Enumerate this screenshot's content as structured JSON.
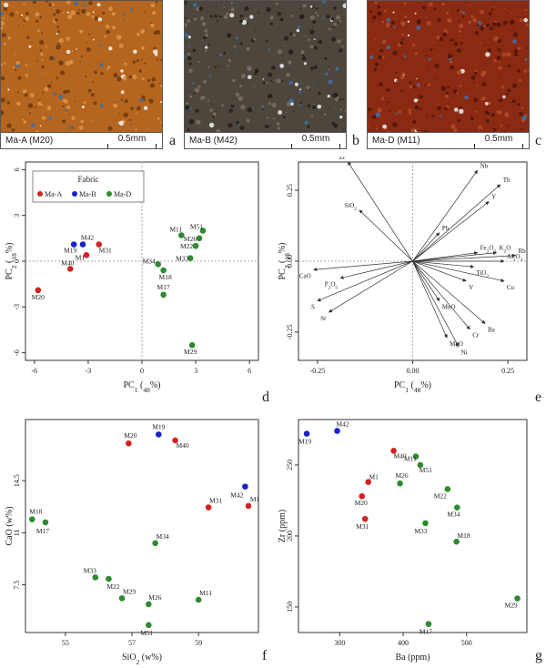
{
  "micrographs": [
    {
      "caption": "Ma-A (M20)",
      "scale": "0.5mm",
      "letter": "a",
      "base": "#b5651d",
      "dark": "#6b3a12",
      "light": "#d9924a"
    },
    {
      "caption": "Ma-B (M42)",
      "scale": "0.5mm",
      "letter": "b",
      "base": "#4d463c",
      "dark": "#221f1a",
      "light": "#7a7060"
    },
    {
      "caption": "Ma-D (M11)",
      "scale": "0.5mm",
      "letter": "c",
      "base": "#8a2a12",
      "dark": "#4e150a",
      "light": "#b24a28"
    }
  ],
  "panel_letters": {
    "d": "d",
    "e": "e",
    "f": "f",
    "g": "g"
  },
  "colors": {
    "Ma-A": "#d32222",
    "Ma-B": "#1a22c8",
    "Ma-D": "#2e8b2e"
  },
  "chart_data": [
    {
      "id": "pca-scores",
      "type": "scatter",
      "xlabel": "PC1 (48%)",
      "ylabel": "PC2 (18%)",
      "xlim": [
        -6.5,
        6.5
      ],
      "ylim": [
        -6.5,
        6.5
      ],
      "xticks": [
        -6,
        -3,
        0,
        3,
        6
      ],
      "yticks": [
        -6,
        -3,
        0,
        3,
        6
      ],
      "legend": {
        "title": "Fabric",
        "entries": [
          "Ma-A",
          "Ma-B",
          "Ma-D"
        ],
        "placement": "top-left"
      },
      "points": [
        {
          "label": "M20",
          "x": -5.8,
          "y": -1.9,
          "group": "Ma-A"
        },
        {
          "label": "M40",
          "x": -4.0,
          "y": -0.5,
          "group": "Ma-A"
        },
        {
          "label": "M1",
          "x": -3.1,
          "y": 0.4,
          "group": "Ma-A"
        },
        {
          "label": "M31",
          "x": -2.4,
          "y": 1.1,
          "group": "Ma-A"
        },
        {
          "label": "M19",
          "x": -3.8,
          "y": 1.1,
          "group": "Ma-B"
        },
        {
          "label": "M42",
          "x": -3.3,
          "y": 1.1,
          "group": "Ma-B"
        },
        {
          "label": "M11",
          "x": 2.2,
          "y": 1.7,
          "group": "Ma-D"
        },
        {
          "label": "M51",
          "x": 3.4,
          "y": 2.0,
          "group": "Ma-D"
        },
        {
          "label": "M26",
          "x": 3.2,
          "y": 1.5,
          "group": "Ma-D"
        },
        {
          "label": "M22",
          "x": 3.0,
          "y": 1.0,
          "group": "Ma-D"
        },
        {
          "label": "M33",
          "x": 2.7,
          "y": 0.2,
          "group": "Ma-D"
        },
        {
          "label": "M34",
          "x": 0.9,
          "y": -0.2,
          "group": "Ma-D"
        },
        {
          "label": "M18",
          "x": 1.2,
          "y": -0.6,
          "group": "Ma-D"
        },
        {
          "label": "M17",
          "x": 1.2,
          "y": -2.2,
          "group": "Ma-D"
        },
        {
          "label": "M29",
          "x": 2.8,
          "y": -5.5,
          "group": "Ma-D"
        }
      ]
    },
    {
      "id": "pca-loadings",
      "type": "scatter",
      "xlabel": "PC1 (48%)",
      "ylabel": "PC2 (18%)",
      "xlim": [
        -0.3,
        0.3
      ],
      "ylim": [
        -0.35,
        0.35
      ],
      "xticks": [
        -0.25,
        0.0,
        0.25
      ],
      "xtick_labels": [
        "-0.25",
        "0.00",
        "0.25"
      ],
      "yticks": [
        -0.25,
        0.0,
        0.25
      ],
      "ytick_labels": [
        "-0.25",
        "0.00",
        "0.25"
      ],
      "vectors": [
        {
          "label": "Zr",
          "x": -0.17,
          "y": 0.35
        },
        {
          "label": "Nb",
          "x": 0.17,
          "y": 0.32
        },
        {
          "label": "Th",
          "x": 0.23,
          "y": 0.27
        },
        {
          "label": "Y",
          "x": 0.2,
          "y": 0.21
        },
        {
          "label": "SiO2",
          "x": -0.14,
          "y": 0.18
        },
        {
          "label": "Pb",
          "x": 0.07,
          "y": 0.1
        },
        {
          "label": "Fe2O3",
          "x": 0.17,
          "y": 0.03
        },
        {
          "label": "K2O",
          "x": 0.22,
          "y": 0.03
        },
        {
          "label": "Rb",
          "x": 0.27,
          "y": 0.02
        },
        {
          "label": "Al2O3",
          "x": 0.24,
          "y": 0.0
        },
        {
          "label": "TiO2",
          "x": 0.16,
          "y": -0.02
        },
        {
          "label": "CaO",
          "x": -0.26,
          "y": -0.03
        },
        {
          "label": "P2O5",
          "x": -0.19,
          "y": -0.06
        },
        {
          "label": "Cu",
          "x": 0.24,
          "y": -0.07
        },
        {
          "label": "V",
          "x": 0.14,
          "y": -0.07
        },
        {
          "label": "S",
          "x": -0.25,
          "y": -0.14
        },
        {
          "label": "Sr",
          "x": -0.22,
          "y": -0.18
        },
        {
          "label": "MnO",
          "x": 0.07,
          "y": -0.14
        },
        {
          "label": "Ba",
          "x": 0.19,
          "y": -0.22
        },
        {
          "label": "Cr",
          "x": 0.15,
          "y": -0.24
        },
        {
          "label": "MgO",
          "x": 0.09,
          "y": -0.27
        },
        {
          "label": "Ni",
          "x": 0.12,
          "y": -0.3
        }
      ]
    },
    {
      "id": "cao-sio2",
      "type": "scatter",
      "xlabel": "SiO2 (w%)",
      "ylabel": "CaO (w%)",
      "xlim": [
        53.8,
        60.8
      ],
      "ylim": [
        4.3,
        18.6
      ],
      "xticks": [
        55,
        57,
        59
      ],
      "yticks": [
        7.5,
        11.0,
        14.5
      ],
      "points": [
        {
          "label": "M19",
          "x": 57.8,
          "y": 17.6,
          "group": "Ma-B"
        },
        {
          "label": "M40",
          "x": 58.3,
          "y": 17.2,
          "group": "Ma-A"
        },
        {
          "label": "M20",
          "x": 56.9,
          "y": 17.0,
          "group": "Ma-A"
        },
        {
          "label": "M42",
          "x": 60.4,
          "y": 14.1,
          "group": "Ma-B"
        },
        {
          "label": "M1",
          "x": 60.5,
          "y": 12.8,
          "group": "Ma-A"
        },
        {
          "label": "M31",
          "x": 59.3,
          "y": 12.7,
          "group": "Ma-A"
        },
        {
          "label": "M18",
          "x": 54.0,
          "y": 11.9,
          "group": "Ma-D"
        },
        {
          "label": "M17",
          "x": 54.4,
          "y": 11.7,
          "group": "Ma-D"
        },
        {
          "label": "M34",
          "x": 57.7,
          "y": 10.3,
          "group": "Ma-D"
        },
        {
          "label": "M33",
          "x": 55.9,
          "y": 8.0,
          "group": "Ma-D"
        },
        {
          "label": "M22",
          "x": 56.3,
          "y": 7.9,
          "group": "Ma-D"
        },
        {
          "label": "M29",
          "x": 56.7,
          "y": 6.6,
          "group": "Ma-D"
        },
        {
          "label": "M26",
          "x": 57.5,
          "y": 6.2,
          "group": "Ma-D"
        },
        {
          "label": "M11",
          "x": 59.0,
          "y": 6.5,
          "group": "Ma-D"
        },
        {
          "label": "M51",
          "x": 57.5,
          "y": 4.8,
          "group": "Ma-D"
        }
      ]
    },
    {
      "id": "zr-ba",
      "type": "scatter",
      "xlabel": "Ba (ppm)",
      "ylabel": "Zr (ppm)",
      "xlim": [
        235,
        595
      ],
      "ylim": [
        132,
        282
      ],
      "xticks": [
        300,
        400,
        500
      ],
      "yticks": [
        150,
        200,
        250
      ],
      "points": [
        {
          "label": "M19",
          "x": 248,
          "y": 272,
          "group": "Ma-B"
        },
        {
          "label": "M42",
          "x": 296,
          "y": 274,
          "group": "Ma-B"
        },
        {
          "label": "M40",
          "x": 385,
          "y": 260,
          "group": "Ma-A"
        },
        {
          "label": "M11",
          "x": 420,
          "y": 256,
          "group": "Ma-D"
        },
        {
          "label": "M51",
          "x": 427,
          "y": 250,
          "group": "Ma-D"
        },
        {
          "label": "M1",
          "x": 345,
          "y": 238,
          "group": "Ma-A"
        },
        {
          "label": "M26",
          "x": 395,
          "y": 237,
          "group": "Ma-D"
        },
        {
          "label": "M20",
          "x": 335,
          "y": 228,
          "group": "Ma-A"
        },
        {
          "label": "M22",
          "x": 470,
          "y": 233,
          "group": "Ma-D"
        },
        {
          "label": "M34",
          "x": 485,
          "y": 220,
          "group": "Ma-D"
        },
        {
          "label": "M31",
          "x": 340,
          "y": 212,
          "group": "Ma-A"
        },
        {
          "label": "M33",
          "x": 435,
          "y": 209,
          "group": "Ma-D"
        },
        {
          "label": "M18",
          "x": 484,
          "y": 196,
          "group": "Ma-D"
        },
        {
          "label": "M29",
          "x": 580,
          "y": 156,
          "group": "Ma-D"
        },
        {
          "label": "M17",
          "x": 440,
          "y": 138,
          "group": "Ma-D"
        }
      ]
    }
  ]
}
